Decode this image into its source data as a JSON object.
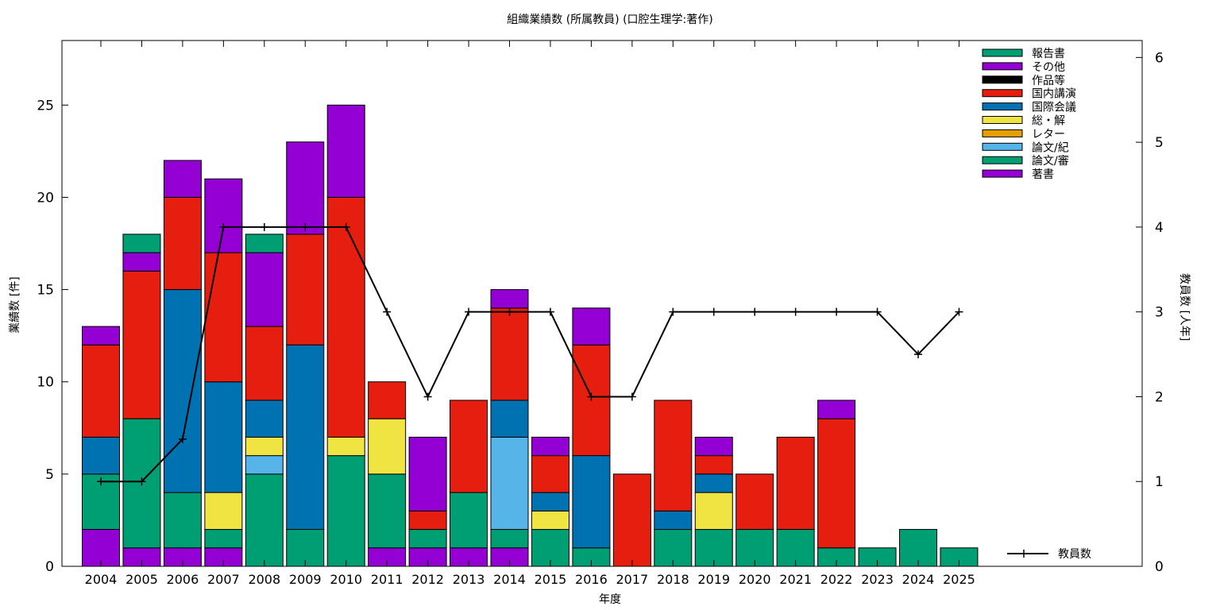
{
  "chart_data": {
    "type": "bar",
    "stacked": true,
    "title": "組織業績数 (所属教員) (口腔生理学:著作)",
    "xlabel": "年度",
    "ylabel": "業績数 [件]",
    "y2label": "教員数 [人年]",
    "ylim": [
      0,
      28.5
    ],
    "y2lim": [
      0,
      6.2
    ],
    "yticks": [
      0,
      5,
      10,
      15,
      20,
      25
    ],
    "y2ticks": [
      0,
      1,
      2,
      3,
      4,
      5,
      6
    ],
    "grid": false,
    "legend_position": "top-right",
    "categories": [
      "2004",
      "2005",
      "2006",
      "2007",
      "2008",
      "2009",
      "2010",
      "2011",
      "2012",
      "2013",
      "2014",
      "2015",
      "2016",
      "2017",
      "2018",
      "2019",
      "2020",
      "2021",
      "2022",
      "2023",
      "2024",
      "2025"
    ],
    "series": [
      {
        "name": "著書",
        "color": "#9400d3",
        "values": [
          2,
          1,
          1,
          1,
          0,
          0,
          0,
          1,
          1,
          1,
          1,
          0,
          0,
          0,
          0,
          0,
          0,
          0,
          0,
          0,
          0,
          0
        ]
      },
      {
        "name": "論文/審",
        "color": "#009e73",
        "values": [
          3,
          7,
          3,
          1,
          5,
          2,
          6,
          4,
          1,
          3,
          1,
          2,
          1,
          0,
          2,
          2,
          2,
          2,
          1,
          1,
          2,
          1
        ]
      },
      {
        "name": "論文/紀",
        "color": "#56b4e9",
        "values": [
          0,
          0,
          0,
          0,
          1,
          0,
          0,
          0,
          0,
          0,
          5,
          0,
          0,
          0,
          0,
          0,
          0,
          0,
          0,
          0,
          0,
          0
        ]
      },
      {
        "name": "レター",
        "color": "#e69f00",
        "values": [
          0,
          0,
          0,
          0,
          0,
          0,
          0,
          0,
          0,
          0,
          0,
          0,
          0,
          0,
          0,
          0,
          0,
          0,
          0,
          0,
          0,
          0
        ]
      },
      {
        "name": "総・解",
        "color": "#f0e442",
        "values": [
          0,
          0,
          0,
          2,
          1,
          0,
          1,
          3,
          0,
          0,
          0,
          1,
          0,
          0,
          0,
          2,
          0,
          0,
          0,
          0,
          0,
          0
        ]
      },
      {
        "name": "国際会議",
        "color": "#0072b2",
        "values": [
          2,
          0,
          11,
          6,
          2,
          10,
          0,
          0,
          0,
          0,
          2,
          1,
          5,
          0,
          1,
          1,
          0,
          0,
          0,
          0,
          0,
          0
        ]
      },
      {
        "name": "国内講演",
        "color": "#e51e10",
        "values": [
          5,
          8,
          5,
          7,
          4,
          6,
          13,
          2,
          1,
          5,
          5,
          2,
          6,
          5,
          6,
          1,
          3,
          5,
          7,
          0,
          0,
          0
        ]
      },
      {
        "name": "作品等",
        "color": "#000000",
        "values": [
          0,
          0,
          0,
          0,
          0,
          0,
          0,
          0,
          0,
          0,
          0,
          0,
          0,
          0,
          0,
          0,
          0,
          0,
          0,
          0,
          0,
          0
        ]
      },
      {
        "name": "その他",
        "color": "#9400d3",
        "values": [
          1,
          1,
          2,
          4,
          4,
          5,
          5,
          0,
          4,
          0,
          1,
          1,
          2,
          0,
          0,
          1,
          0,
          0,
          1,
          0,
          0,
          0
        ]
      },
      {
        "name": "報告書",
        "color": "#009e73",
        "values": [
          0,
          1,
          0,
          0,
          1,
          0,
          0,
          0,
          0,
          0,
          0,
          0,
          0,
          0,
          0,
          0,
          0,
          0,
          0,
          0,
          0,
          0
        ]
      }
    ],
    "line_series": {
      "name": "教員数",
      "color": "#000000",
      "axis": "right",
      "values": [
        1,
        1,
        1.5,
        4,
        4,
        4,
        4,
        3,
        2,
        3,
        3,
        3,
        2,
        2,
        3,
        3,
        3,
        3,
        3,
        3,
        2.5,
        3
      ]
    }
  }
}
